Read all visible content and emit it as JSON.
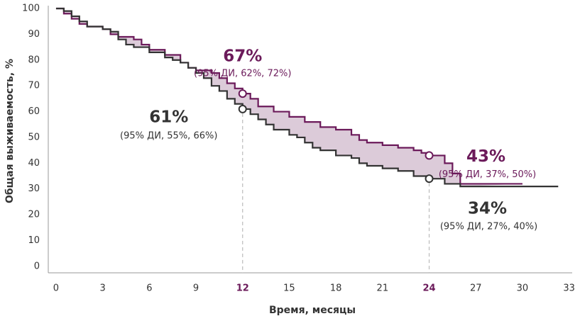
{
  "chart_data": {
    "type": "step",
    "x_label": "Время, месяцы",
    "y_label": "Общая выживаемость, %",
    "xlim": [
      -0.5,
      33.2
    ],
    "ylim": [
      -2.5,
      100
    ],
    "xticks": [
      0,
      3,
      6,
      9,
      12,
      15,
      18,
      21,
      24,
      27,
      30,
      33
    ],
    "yticks": [
      0,
      10,
      20,
      30,
      40,
      50,
      60,
      70,
      80,
      90,
      100
    ],
    "highlight_xticks": [
      12,
      24
    ],
    "highlight_color": "#6b1a5a",
    "shade_color": "#dccbd9",
    "series": [
      {
        "color": "#6b1a5a",
        "x": [
          0,
          0.5,
          1,
          1.5,
          2,
          3,
          3.5,
          4,
          5,
          5.5,
          6,
          7,
          8,
          8.5,
          9,
          10,
          10.5,
          11,
          11.5,
          12,
          12.5,
          13,
          14,
          15,
          16,
          17,
          18,
          19,
          19.5,
          20,
          21,
          22,
          23,
          23.5,
          24,
          25,
          25.5,
          26,
          30
        ],
        "values": [
          100,
          98,
          96,
          94,
          93,
          92,
          90,
          89,
          88,
          86,
          84,
          82,
          79,
          77,
          76,
          75,
          73,
          71,
          69,
          67,
          65,
          62,
          60,
          58,
          56,
          54,
          53,
          51,
          49,
          48,
          47,
          46,
          45,
          44,
          43,
          40,
          36,
          32,
          32
        ]
      },
      {
        "color": "#333333",
        "x": [
          0,
          0.5,
          1,
          1.5,
          2,
          3,
          3.5,
          4,
          4.5,
          5,
          6,
          7,
          7.5,
          8,
          8.5,
          9,
          9.5,
          10,
          10.5,
          11,
          11.5,
          12,
          12.5,
          13,
          13.5,
          14,
          15,
          15.5,
          16,
          16.5,
          17,
          18,
          19,
          19.5,
          20,
          21,
          22,
          23,
          24,
          25,
          26,
          32.3
        ],
        "values": [
          100,
          99,
          97,
          95,
          93,
          92,
          91,
          88,
          86,
          85,
          83,
          81,
          80,
          79,
          77,
          75,
          73,
          70,
          68,
          65,
          63,
          61,
          59,
          57,
          55,
          53,
          51,
          50,
          48,
          46,
          45,
          43,
          42,
          40,
          39,
          38,
          37,
          35,
          34,
          32,
          31,
          31
        ]
      }
    ],
    "points": [
      {
        "x": 12,
        "y": 67,
        "color": "#6b1a5a",
        "label": "67%",
        "ci": "(95% ДИ, 62%, 72%)"
      },
      {
        "x": 12,
        "y": 61,
        "color": "#333333",
        "label": "61%",
        "ci": "(95% ДИ, 55%, 66%)"
      },
      {
        "x": 24,
        "y": 43,
        "color": "#6b1a5a",
        "label": "43%",
        "ci": "(95% ДИ, 37%, 50%)"
      },
      {
        "x": 24,
        "y": 34,
        "color": "#333333",
        "label": "34%",
        "ci": "(95% ДИ, 27%, 40%)"
      }
    ]
  }
}
